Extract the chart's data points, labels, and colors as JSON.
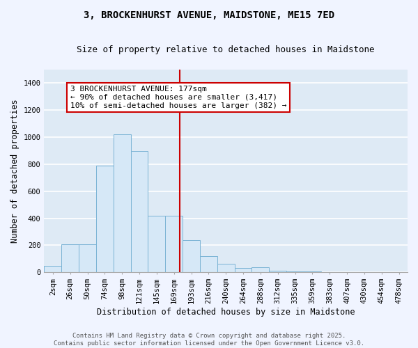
{
  "title_line1": "3, BROCKENHURST AVENUE, MAIDSTONE, ME15 7ED",
  "title_line2": "Size of property relative to detached houses in Maidstone",
  "xlabel": "Distribution of detached houses by size in Maidstone",
  "ylabel": "Number of detached properties",
  "bar_labels": [
    "2sqm",
    "26sqm",
    "50sqm",
    "74sqm",
    "98sqm",
    "121sqm",
    "145sqm",
    "169sqm",
    "193sqm",
    "216sqm",
    "240sqm",
    "264sqm",
    "288sqm",
    "312sqm",
    "335sqm",
    "359sqm",
    "383sqm",
    "407sqm",
    "430sqm",
    "454sqm",
    "478sqm"
  ],
  "bar_values": [
    50,
    205,
    205,
    790,
    1020,
    900,
    420,
    420,
    240,
    120,
    65,
    30,
    40,
    10,
    5,
    5,
    2,
    2,
    2,
    2,
    2
  ],
  "bar_color": "#d6e8f7",
  "bar_edge_color": "#7ab3d4",
  "vline_color": "#cc0000",
  "annotation_text": "3 BROCKENHURST AVENUE: 177sqm\n← 90% of detached houses are smaller (3,417)\n10% of semi-detached houses are larger (382) →",
  "ylim": [
    0,
    1500
  ],
  "yticks": [
    0,
    200,
    400,
    600,
    800,
    1000,
    1200,
    1400
  ],
  "background_color": "#deeaf5",
  "grid_color": "#ffffff",
  "fig_background": "#f0f4ff",
  "footer_line1": "Contains HM Land Registry data © Crown copyright and database right 2025.",
  "footer_line2": "Contains public sector information licensed under the Open Government Licence v3.0.",
  "title_fontsize": 10,
  "subtitle_fontsize": 9,
  "axis_label_fontsize": 8.5,
  "tick_fontsize": 7.5,
  "annotation_fontsize": 8,
  "footer_fontsize": 6.5
}
